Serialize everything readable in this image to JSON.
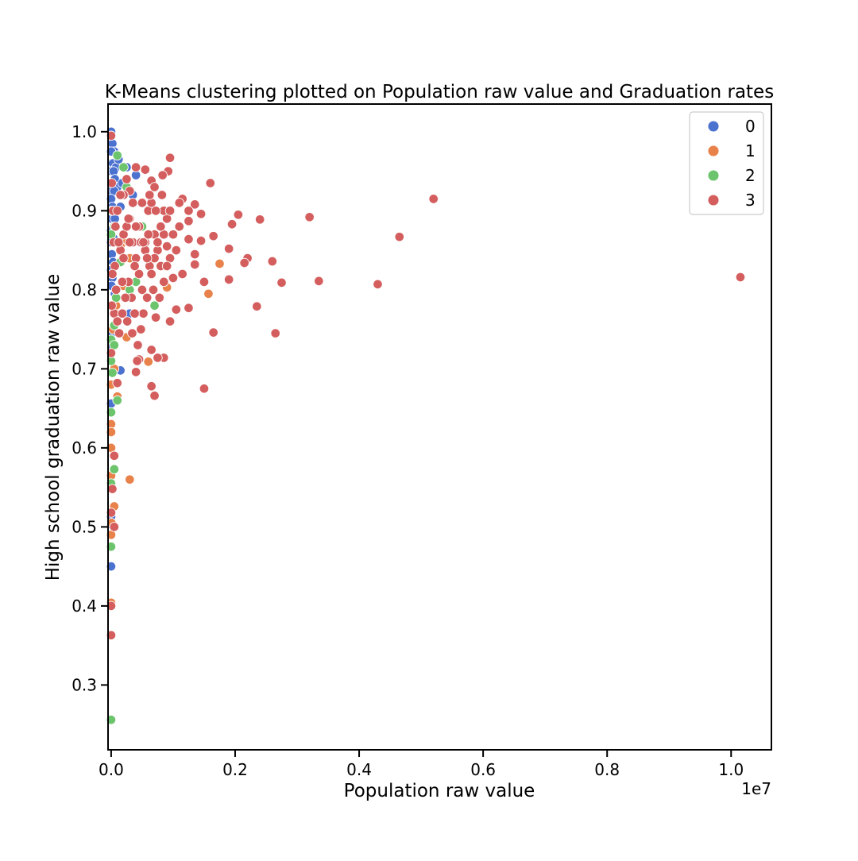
{
  "chart_data": {
    "type": "scatter",
    "title": "K-Means clustering plotted on Population raw value and Graduation rates",
    "xlabel": "Population raw value",
    "ylabel": "High school graduation raw value",
    "x_offset_label": "1e7",
    "xlim": [
      -50000,
      10650000
    ],
    "ylim": [
      0.218,
      1.035
    ],
    "x_ticks": [
      0,
      2000000,
      4000000,
      6000000,
      8000000,
      10000000
    ],
    "x_tick_labels": [
      "0.0",
      "0.2",
      "0.4",
      "0.6",
      "0.8",
      "1.0"
    ],
    "y_ticks": [
      0.3,
      0.4,
      0.5,
      0.6,
      0.7,
      0.8,
      0.9,
      1.0
    ],
    "y_tick_labels": [
      "0.3",
      "0.4",
      "0.5",
      "0.6",
      "0.7",
      "0.8",
      "0.9",
      "1.0"
    ],
    "grid": false,
    "legend": {
      "position": "top-right",
      "entries": [
        "0",
        "1",
        "2",
        "3"
      ]
    },
    "series": [
      {
        "name": "0",
        "color": "#4c72d0",
        "points": [
          [
            0,
            1.0
          ],
          [
            20000,
            0.985
          ],
          [
            50000,
            0.975
          ],
          [
            0,
            0.975
          ],
          [
            10000,
            0.96
          ],
          [
            30000,
            0.96
          ],
          [
            80000,
            0.955
          ],
          [
            120000,
            0.965
          ],
          [
            5000,
            0.95
          ],
          [
            40000,
            0.95
          ],
          [
            60000,
            0.94
          ],
          [
            100000,
            0.93
          ],
          [
            180000,
            0.935
          ],
          [
            10000,
            0.925
          ],
          [
            50000,
            0.925
          ],
          [
            0,
            0.915
          ],
          [
            20000,
            0.905
          ],
          [
            150000,
            0.905
          ],
          [
            10000,
            0.89
          ],
          [
            60000,
            0.89
          ],
          [
            0,
            0.875
          ],
          [
            40000,
            0.865
          ],
          [
            0,
            0.86
          ],
          [
            10000,
            0.845
          ],
          [
            30000,
            0.835
          ],
          [
            0,
            0.825
          ],
          [
            20000,
            0.815
          ],
          [
            5000,
            0.805
          ],
          [
            60000,
            0.795
          ],
          [
            15000,
            0.78
          ],
          [
            5000,
            0.745
          ],
          [
            10000,
            0.73
          ],
          [
            150000,
            0.698
          ],
          [
            0,
            0.656
          ],
          [
            0,
            0.513
          ],
          [
            0,
            0.503
          ],
          [
            0,
            0.45
          ],
          [
            400000,
            0.945
          ],
          [
            250000,
            0.955
          ],
          [
            350000,
            0.92
          ],
          [
            300000,
            0.77
          ]
        ]
      },
      {
        "name": "1",
        "color": "#e8824a",
        "points": [
          [
            0,
            0.63
          ],
          [
            0,
            0.62
          ],
          [
            0,
            0.6
          ],
          [
            0,
            0.565
          ],
          [
            50000,
            0.526
          ],
          [
            5000,
            0.505
          ],
          [
            0,
            0.49
          ],
          [
            0,
            0.404
          ],
          [
            300000,
            0.56
          ],
          [
            600000,
            0.709
          ],
          [
            250000,
            0.74
          ],
          [
            1750000,
            0.833
          ],
          [
            1570000,
            0.795
          ],
          [
            900000,
            0.803
          ],
          [
            200000,
            0.805
          ],
          [
            100000,
            0.665
          ],
          [
            50000,
            0.7
          ],
          [
            0,
            0.68
          ],
          [
            200000,
            0.86
          ],
          [
            150000,
            0.855
          ],
          [
            80000,
            0.78
          ],
          [
            30000,
            0.75
          ],
          [
            300000,
            0.84
          ]
        ]
      },
      {
        "name": "2",
        "color": "#6cc46c",
        "points": [
          [
            0,
            0.256
          ],
          [
            0,
            0.475
          ],
          [
            0,
            0.555
          ],
          [
            50000,
            0.573
          ],
          [
            0,
            0.645
          ],
          [
            100000,
            0.66
          ],
          [
            0,
            0.71
          ],
          [
            0,
            0.737
          ],
          [
            50000,
            0.73
          ],
          [
            20000,
            0.695
          ],
          [
            50000,
            0.755
          ],
          [
            700000,
            0.78
          ],
          [
            300000,
            0.8
          ],
          [
            400000,
            0.81
          ],
          [
            0,
            0.9
          ],
          [
            100000,
            0.97
          ],
          [
            200000,
            0.955
          ],
          [
            50000,
            0.88
          ],
          [
            150000,
            0.835
          ],
          [
            500000,
            0.88
          ],
          [
            250000,
            0.93
          ],
          [
            0,
            0.87
          ],
          [
            20000,
            0.82
          ],
          [
            80000,
            0.79
          ]
        ]
      },
      {
        "name": "3",
        "color": "#d45e5e",
        "points": [
          [
            0,
            0.995
          ],
          [
            10000,
            0.935
          ],
          [
            950000,
            0.967
          ],
          [
            920000,
            0.95
          ],
          [
            400000,
            0.955
          ],
          [
            550000,
            0.952
          ],
          [
            830000,
            0.945
          ],
          [
            650000,
            0.938
          ],
          [
            1600000,
            0.935
          ],
          [
            700000,
            0.93
          ],
          [
            300000,
            0.925
          ],
          [
            200000,
            0.92
          ],
          [
            1150000,
            0.915
          ],
          [
            5200000,
            0.915
          ],
          [
            1100000,
            0.91
          ],
          [
            1350000,
            0.908
          ],
          [
            1250000,
            0.9
          ],
          [
            2050000,
            0.895
          ],
          [
            1450000,
            0.896
          ],
          [
            3200000,
            0.892
          ],
          [
            2400000,
            0.889
          ],
          [
            1250000,
            0.887
          ],
          [
            1950000,
            0.883
          ],
          [
            1100000,
            0.88
          ],
          [
            1650000,
            0.868
          ],
          [
            4650000,
            0.867
          ],
          [
            1450000,
            0.862
          ],
          [
            1250000,
            0.864
          ],
          [
            1900000,
            0.852
          ],
          [
            1050000,
            0.85
          ],
          [
            1350000,
            0.845
          ],
          [
            2200000,
            0.84
          ],
          [
            2600000,
            0.836
          ],
          [
            2150000,
            0.834
          ],
          [
            1350000,
            0.832
          ],
          [
            1150000,
            0.82
          ],
          [
            1000000,
            0.815
          ],
          [
            10150000,
            0.816
          ],
          [
            3350000,
            0.811
          ],
          [
            1900000,
            0.813
          ],
          [
            2750000,
            0.809
          ],
          [
            4300000,
            0.807
          ],
          [
            1500000,
            0.81
          ],
          [
            1050000,
            0.775
          ],
          [
            1250000,
            0.777
          ],
          [
            2350000,
            0.779
          ],
          [
            950000,
            0.76
          ],
          [
            1650000,
            0.746
          ],
          [
            2650000,
            0.745
          ],
          [
            650000,
            0.678
          ],
          [
            700000,
            0.666
          ],
          [
            1500000,
            0.675
          ],
          [
            850000,
            0.714
          ],
          [
            750000,
            0.714
          ],
          [
            650000,
            0.724
          ],
          [
            450000,
            0.712
          ],
          [
            400000,
            0.696
          ],
          [
            100000,
            0.682
          ],
          [
            50000,
            0.59
          ],
          [
            50000,
            0.5
          ],
          [
            0,
            0.518
          ],
          [
            0,
            0.4
          ],
          [
            0,
            0.363
          ],
          [
            20000,
            0.548
          ],
          [
            0,
            0.72
          ],
          [
            50000,
            0.77
          ],
          [
            100000,
            0.76
          ],
          [
            150000,
            0.85
          ],
          [
            200000,
            0.87
          ],
          [
            250000,
            0.88
          ],
          [
            300000,
            0.89
          ],
          [
            350000,
            0.86
          ],
          [
            400000,
            0.84
          ],
          [
            450000,
            0.82
          ],
          [
            500000,
            0.8
          ],
          [
            550000,
            0.86
          ],
          [
            600000,
            0.9
          ],
          [
            650000,
            0.91
          ],
          [
            700000,
            0.87
          ],
          [
            750000,
            0.85
          ],
          [
            800000,
            0.83
          ],
          [
            850000,
            0.87
          ],
          [
            900000,
            0.89
          ],
          [
            950000,
            0.84
          ],
          [
            1000000,
            0.87
          ],
          [
            850000,
            0.81
          ],
          [
            780000,
            0.79
          ],
          [
            720000,
            0.765
          ],
          [
            680000,
            0.8
          ],
          [
            620000,
            0.83
          ],
          [
            580000,
            0.79
          ],
          [
            520000,
            0.77
          ],
          [
            480000,
            0.75
          ],
          [
            430000,
            0.73
          ],
          [
            380000,
            0.77
          ],
          [
            330000,
            0.79
          ],
          [
            280000,
            0.81
          ],
          [
            230000,
            0.79
          ],
          [
            180000,
            0.77
          ],
          [
            130000,
            0.745
          ],
          [
            80000,
            0.8
          ],
          [
            60000,
            0.83
          ],
          [
            40000,
            0.86
          ],
          [
            30000,
            0.9
          ],
          [
            20000,
            0.82
          ],
          [
            10000,
            0.78
          ],
          [
            100000,
            0.9
          ],
          [
            150000,
            0.92
          ],
          [
            250000,
            0.94
          ],
          [
            350000,
            0.91
          ],
          [
            450000,
            0.88
          ],
          [
            550000,
            0.85
          ],
          [
            650000,
            0.82
          ],
          [
            750000,
            0.86
          ],
          [
            850000,
            0.9
          ],
          [
            950000,
            0.9
          ],
          [
            200000,
            0.84
          ],
          [
            300000,
            0.86
          ],
          [
            400000,
            0.88
          ],
          [
            500000,
            0.91
          ],
          [
            600000,
            0.87
          ],
          [
            700000,
            0.84
          ],
          [
            800000,
            0.88
          ],
          [
            900000,
            0.83
          ],
          [
            380000,
            0.83
          ],
          [
            480000,
            0.86
          ],
          [
            580000,
            0.84
          ],
          [
            280000,
            0.89
          ],
          [
            180000,
            0.81
          ],
          [
            120000,
            0.86
          ],
          [
            70000,
            0.88
          ],
          [
            260000,
            0.76
          ],
          [
            340000,
            0.745
          ],
          [
            420000,
            0.71
          ],
          [
            520000,
            0.86
          ],
          [
            620000,
            0.92
          ],
          [
            720000,
            0.9
          ],
          [
            820000,
            0.92
          ],
          [
            900000,
            0.855
          ]
        ]
      }
    ]
  }
}
